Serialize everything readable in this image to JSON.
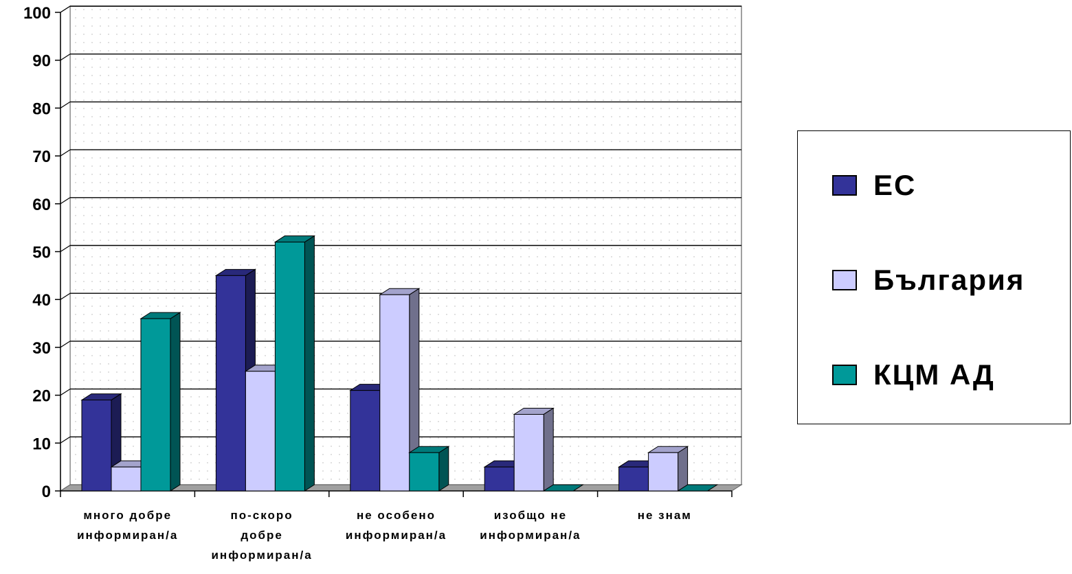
{
  "chart_data": {
    "type": "bar",
    "categories": [
      [
        "много добре",
        "информиран/а"
      ],
      [
        "по-скоро",
        "добре",
        "информиран/а"
      ],
      [
        "не особено",
        "информиран/а"
      ],
      [
        "изобщо не",
        "информиран/а"
      ],
      [
        "не знам"
      ]
    ],
    "series": [
      {
        "name": "ЕС",
        "values": [
          19,
          45,
          21,
          5,
          5
        ],
        "color": "#333399"
      },
      {
        "name": "България",
        "values": [
          5,
          25,
          41,
          16,
          8
        ],
        "color": "#ccccff"
      },
      {
        "name": "КЦМ АД",
        "values": [
          36,
          52,
          8,
          0,
          0
        ],
        "color": "#009999"
      }
    ],
    "ylim": [
      0,
      100
    ],
    "yticks": [
      "0",
      "10",
      "20",
      "30",
      "40",
      "50",
      "60",
      "70",
      "80",
      "90",
      "100"
    ],
    "gridlines": true,
    "legend_position": "right",
    "style": "3d-clustered-column"
  }
}
